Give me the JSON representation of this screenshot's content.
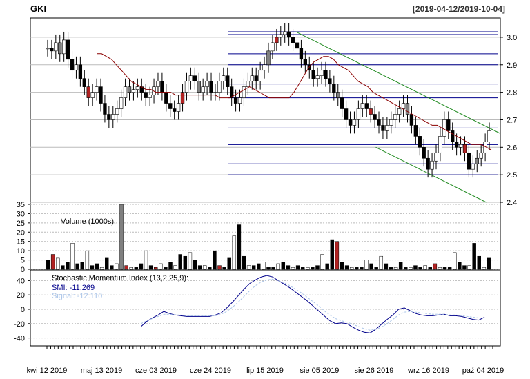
{
  "header": {
    "ticker": "GKI",
    "date_range": "[2019-04-12/2019-10-04]"
  },
  "colors": {
    "up": "#ffffff",
    "down": "#000000",
    "neutral": "#808080",
    "highlight": "#b22222",
    "moving_average": "#8b0000",
    "trend_channel": "#228b22",
    "level_lines": "#00008b",
    "smi": "#00008b",
    "signal": "#aac4e8",
    "grid": "#bbbbbb"
  },
  "chart_data": [
    {
      "type": "candlestick",
      "panel": "price",
      "ylim": [
        2.4,
        3.05
      ],
      "y_ticks": [
        "2.4",
        "2.5",
        "2.6",
        "2.7",
        "2.8",
        "2.9",
        "3.0"
      ],
      "x_ticks": [
        "kwi 12 2019",
        "maj 13 2019",
        "cze 03 2019",
        "cze 24 2019",
        "lip 15 2019",
        "sie 05 2019",
        "sie 26 2019",
        "wrz 16 2019",
        "paź 04 2019"
      ],
      "grid": true,
      "series_close": [
        2.96,
        2.95,
        2.98,
        2.94,
        2.99,
        2.92,
        2.88,
        2.9,
        2.85,
        2.82,
        2.78,
        2.8,
        2.82,
        2.76,
        2.72,
        2.7,
        2.72,
        2.74,
        2.78,
        2.82,
        2.8,
        2.81,
        2.82,
        2.8,
        2.78,
        2.79,
        2.82,
        2.84,
        2.8,
        2.76,
        2.74,
        2.73,
        2.76,
        2.8,
        2.84,
        2.86,
        2.84,
        2.8,
        2.82,
        2.84,
        2.8,
        2.8,
        2.84,
        2.86,
        2.82,
        2.78,
        2.76,
        2.78,
        2.82,
        2.84,
        2.86,
        2.84,
        2.88,
        2.9,
        2.95,
        2.98,
        3.0,
        3.01,
        3.02,
        3.0,
        2.98,
        2.96,
        2.92,
        2.9,
        2.88,
        2.85,
        2.86,
        2.88,
        2.85,
        2.83,
        2.8,
        2.78,
        2.74,
        2.7,
        2.68,
        2.7,
        2.74,
        2.76,
        2.74,
        2.72,
        2.7,
        2.68,
        2.66,
        2.68,
        2.7,
        2.72,
        2.74,
        2.76,
        2.72,
        2.68,
        2.64,
        2.6,
        2.56,
        2.52,
        2.55,
        2.58,
        2.64,
        2.7,
        2.66,
        2.62,
        2.6,
        2.61,
        2.58,
        2.52,
        2.54,
        2.56,
        2.58,
        2.62,
        2.66
      ],
      "moving_average": [
        2.94,
        2.94,
        2.93,
        2.92,
        2.9,
        2.88,
        2.86,
        2.84,
        2.83,
        2.82,
        2.81,
        2.81,
        2.8,
        2.8,
        2.8,
        2.8,
        2.79,
        2.79,
        2.79,
        2.79,
        2.79,
        2.79,
        2.79,
        2.79,
        2.79,
        2.78,
        2.78,
        2.78,
        2.79,
        2.8,
        2.81,
        2.82,
        2.81,
        2.8,
        2.79,
        2.78,
        2.78,
        2.78,
        2.78,
        2.78,
        2.8,
        2.83,
        2.86,
        2.89,
        2.91,
        2.92,
        2.93,
        2.93,
        2.92,
        2.9,
        2.89,
        2.88,
        2.86,
        2.84,
        2.83,
        2.82,
        2.8,
        2.79,
        2.78,
        2.77,
        2.76,
        2.75,
        2.74,
        2.73,
        2.72,
        2.71,
        2.7,
        2.69,
        2.68,
        2.68,
        2.67,
        2.66,
        2.65,
        2.64,
        2.63,
        2.62,
        2.61,
        2.61,
        2.61,
        2.6,
        2.59
      ],
      "trend_channel": {
        "upper": [
          {
            "x": 0.565,
            "y": 3.02
          },
          {
            "x": 1.0,
            "y": 2.65
          }
        ],
        "lower": [
          {
            "x": 0.735,
            "y": 2.6
          },
          {
            "x": 0.97,
            "y": 2.4
          }
        ]
      },
      "levels": [
        3.02,
        3.01,
        2.94,
        2.9,
        2.83,
        2.78,
        2.67,
        2.61,
        2.54,
        2.5
      ]
    },
    {
      "type": "bar",
      "panel": "volume",
      "label": "Volume (1000s):",
      "ylim": [
        0,
        35
      ],
      "y_ticks": [
        "0",
        "5",
        "10",
        "15",
        "20",
        "25",
        "30",
        "35"
      ],
      "values": [
        5,
        8,
        6,
        2,
        4,
        14,
        3,
        4,
        10,
        2,
        3,
        1,
        6,
        2,
        3,
        35,
        2,
        1,
        1,
        3,
        10,
        2,
        1,
        3,
        1,
        4,
        2,
        8,
        7,
        9,
        5,
        2,
        2,
        1,
        10,
        2,
        1,
        6,
        18,
        24,
        7,
        2,
        2,
        3,
        4,
        1,
        1,
        3,
        4,
        2,
        1,
        2,
        1,
        1,
        1,
        2,
        8,
        3,
        16,
        15,
        4,
        2,
        1,
        1,
        1,
        5,
        3,
        1,
        7,
        3,
        1,
        1,
        4,
        1,
        1,
        2,
        1,
        2,
        1,
        3,
        1,
        1,
        1,
        9,
        4,
        2,
        2,
        14,
        7,
        1,
        6
      ],
      "highlight_indices": [
        1,
        16,
        22,
        35,
        59,
        79
      ]
    },
    {
      "type": "line",
      "panel": "oscillator",
      "label": "Stochastic Momentum Index (13,2,25,9):",
      "ylim": [
        -50,
        50
      ],
      "y_ticks": [
        "-40",
        "-20",
        "0",
        "20",
        "40"
      ],
      "x_start": 0.25,
      "series": [
        {
          "name": "SMI: -11.269",
          "values": [
            -24,
            -17,
            -12,
            -8,
            -3,
            -6,
            -8,
            -9,
            -10,
            -10,
            -10,
            -10,
            -10,
            -8,
            -5,
            2,
            10,
            19,
            28,
            36,
            41,
            45,
            47,
            45,
            40,
            35,
            30,
            24,
            18,
            12,
            5,
            -2,
            -9,
            -16,
            -20,
            -19,
            -20,
            -25,
            -29,
            -32,
            -33,
            -28,
            -21,
            -14,
            -8,
            0,
            2,
            -2,
            -6,
            -8,
            -9,
            -9,
            -8,
            -7,
            -9,
            -9,
            -10,
            -12,
            -14,
            -15,
            -11
          ]
        },
        {
          "name": "Signal: -12.110",
          "values": [
            -20,
            -16,
            -13,
            -10,
            -7,
            -7,
            -8,
            -8,
            -9,
            -9,
            -9,
            -9,
            -9,
            -9,
            -7,
            -3,
            3,
            10,
            18,
            26,
            33,
            38,
            41,
            42,
            40,
            37,
            33,
            28,
            23,
            17,
            11,
            5,
            -2,
            -8,
            -13,
            -16,
            -18,
            -21,
            -24,
            -27,
            -29,
            -28,
            -25,
            -20,
            -14,
            -8,
            -4,
            -3,
            -4,
            -5,
            -6,
            -7,
            -7,
            -7,
            -8,
            -8,
            -9,
            -10,
            -11,
            -12,
            -12
          ]
        }
      ]
    }
  ]
}
